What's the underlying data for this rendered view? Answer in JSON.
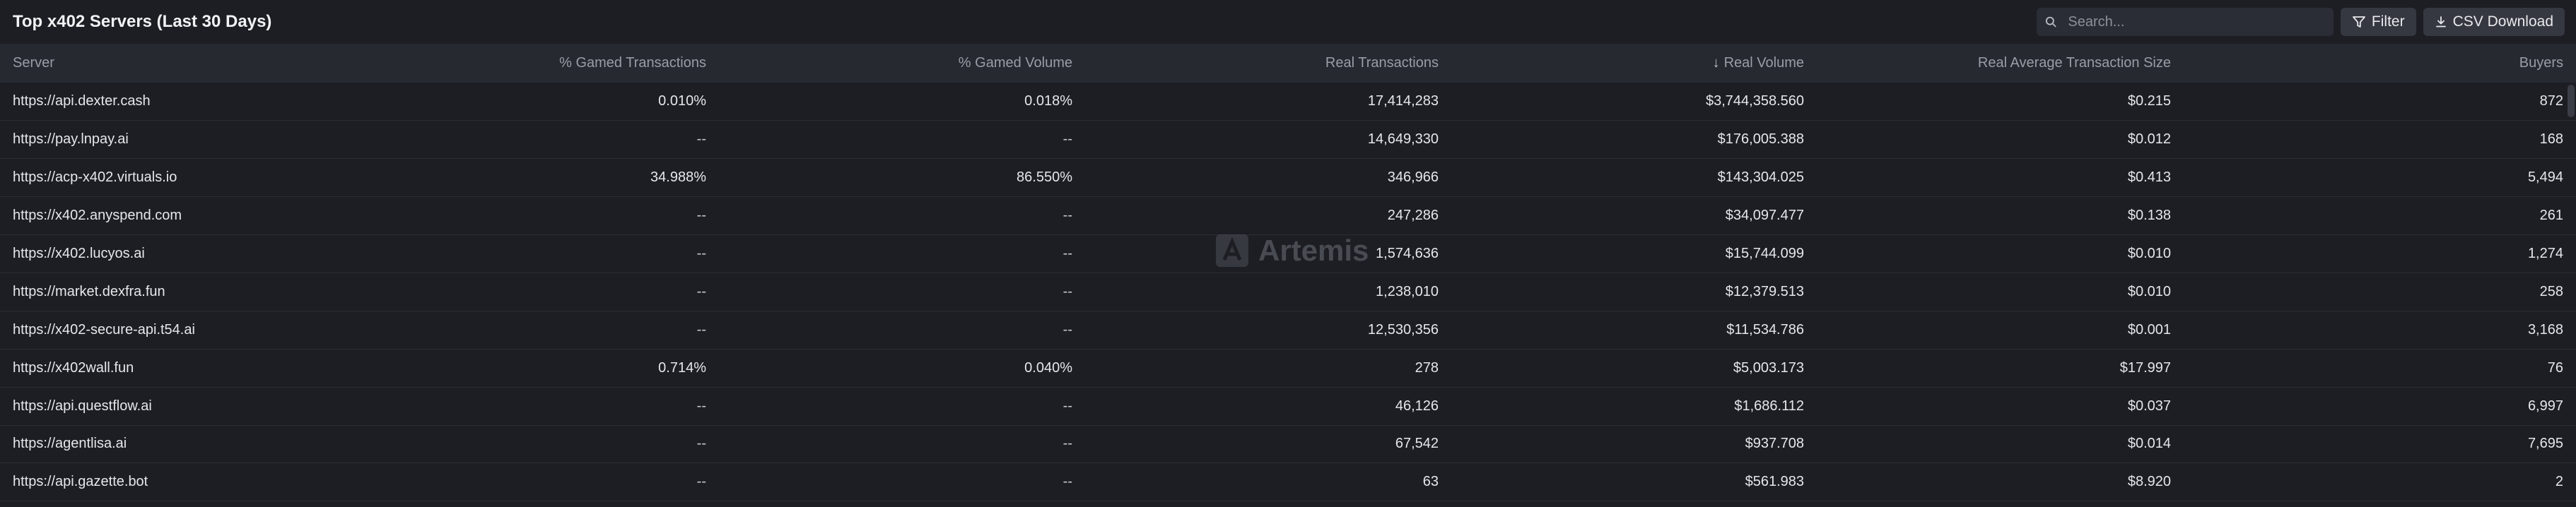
{
  "header": {
    "title": "Top x402 Servers (Last 30 Days)",
    "search_placeholder": "Search...",
    "filter_label": "Filter",
    "csv_label": "CSV Download"
  },
  "watermark": {
    "text": "Artemis"
  },
  "table": {
    "columns": [
      "Server",
      "% Gamed Transactions",
      "% Gamed Volume",
      "Real Transactions",
      "Real Volume",
      "Real Average Transaction Size",
      "Buyers"
    ],
    "sorted_column": "Real Volume",
    "sort_direction": "descending",
    "rows": [
      [
        "https://api.dexter.cash",
        "0.010%",
        "0.018%",
        "17,414,283",
        "$3,744,358.560",
        "$0.215",
        "872"
      ],
      [
        "https://pay.lnpay.ai",
        "--",
        "--",
        "14,649,330",
        "$176,005.388",
        "$0.012",
        "168"
      ],
      [
        "https://acp-x402.virtuals.io",
        "34.988%",
        "86.550%",
        "346,966",
        "$143,304.025",
        "$0.413",
        "5,494"
      ],
      [
        "https://x402.anyspend.com",
        "--",
        "--",
        "247,286",
        "$34,097.477",
        "$0.138",
        "261"
      ],
      [
        "https://x402.lucyos.ai",
        "--",
        "--",
        "1,574,636",
        "$15,744.099",
        "$0.010",
        "1,274"
      ],
      [
        "https://market.dexfra.fun",
        "--",
        "--",
        "1,238,010",
        "$12,379.513",
        "$0.010",
        "258"
      ],
      [
        "https://x402-secure-api.t54.ai",
        "--",
        "--",
        "12,530,356",
        "$11,534.786",
        "$0.001",
        "3,168"
      ],
      [
        "https://x402wall.fun",
        "0.714%",
        "0.040%",
        "278",
        "$5,003.173",
        "$17.997",
        "76"
      ],
      [
        "https://api.questflow.ai",
        "--",
        "--",
        "46,126",
        "$1,686.112",
        "$0.037",
        "6,997"
      ],
      [
        "https://agentlisa.ai",
        "--",
        "--",
        "67,542",
        "$937.708",
        "$0.014",
        "7,695"
      ],
      [
        "https://api.gazette.bot",
        "--",
        "--",
        "63",
        "$561.983",
        "$8.920",
        "2"
      ]
    ]
  }
}
